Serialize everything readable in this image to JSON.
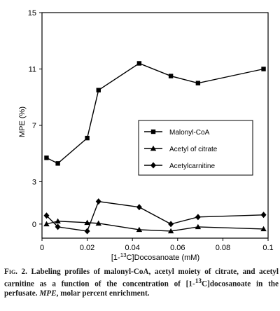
{
  "chart_data": {
    "type": "line",
    "xlabel_pre": "[1-",
    "xlabel_sup": "13",
    "xlabel_post": "C]Docosanoate (mM)",
    "ylabel": "MPE (%)",
    "xlim": [
      0,
      0.1
    ],
    "ylim": [
      -1,
      15
    ],
    "x_ticks": [
      0,
      0.02,
      0.04,
      0.06,
      0.08,
      0.1
    ],
    "x_tick_labels": [
      "0",
      "0.02",
      "0.04",
      "0.06",
      "0.08",
      "0.1"
    ],
    "y_ticks": [
      0,
      3,
      7,
      11,
      15
    ],
    "y_tick_labels": [
      "0",
      "3",
      "7",
      "11",
      "15"
    ],
    "legend_position": "middle-right",
    "series": [
      {
        "name": "Malonyl-CoA",
        "marker": "square",
        "x": [
          0.002,
          0.007,
          0.02,
          0.025,
          0.043,
          0.057,
          0.069,
          0.098
        ],
        "y": [
          4.7,
          4.3,
          6.1,
          9.5,
          11.4,
          10.5,
          10.0,
          11.0
        ]
      },
      {
        "name": "Acetyl of citrate",
        "marker": "triangle",
        "x": [
          0.002,
          0.007,
          0.02,
          0.025,
          0.043,
          0.057,
          0.069,
          0.098
        ],
        "y": [
          0.0,
          0.2,
          0.1,
          0.05,
          -0.4,
          -0.5,
          -0.2,
          -0.35
        ]
      },
      {
        "name": "Acetylcarnitine",
        "marker": "diamond",
        "x": [
          0.002,
          0.007,
          0.02,
          0.025,
          0.043,
          0.057,
          0.069,
          0.098
        ],
        "y": [
          0.6,
          -0.2,
          -0.5,
          1.6,
          1.2,
          0.0,
          0.5,
          0.65
        ]
      }
    ]
  },
  "caption": {
    "fig_label": "Fig. 2.",
    "text_1": " Labeling profiles of malonyl-CoA, acetyl moiety of citrate, and acetyl carnitine as a function of the concentration of [1-",
    "sup": "13",
    "text_2": "C]docosanoate in the perfusate. ",
    "mpe": "MPE",
    "text_3": ", molar percent enrichment."
  }
}
